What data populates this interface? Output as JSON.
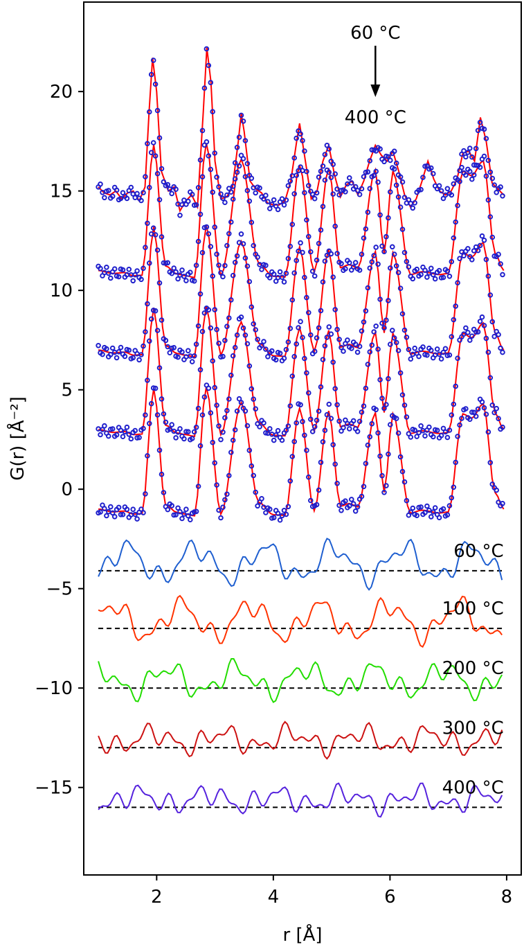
{
  "chart_data": {
    "type": "line",
    "title": "",
    "xlabel": "r [Å]",
    "ylabel": "G(r) [Å⁻²]",
    "xlim": [
      0.75,
      8.25
    ],
    "ylim": [
      -19.4,
      24.5
    ],
    "xticks": [
      2,
      4,
      6,
      8
    ],
    "xtick_labels": [
      "2",
      "4",
      "6",
      "8"
    ],
    "yticks": [
      -15,
      -10,
      -5,
      0,
      5,
      10,
      15,
      20
    ],
    "ytick_labels": [
      "−15",
      "−10",
      "−5",
      "0",
      "5",
      "10",
      "15",
      "20"
    ],
    "grid": false,
    "annotation": {
      "top_label": "60 °C",
      "bottom_label": "400 °C",
      "arrow": "down"
    },
    "peak_profile": [
      [
        1.0,
        0.0
      ],
      [
        1.25,
        -0.5
      ],
      [
        1.45,
        -0.35
      ],
      [
        1.6,
        -0.9
      ],
      [
        1.75,
        -0.8
      ],
      [
        1.95,
        21.5
      ],
      [
        2.15,
        0.8
      ],
      [
        2.35,
        -0.6
      ],
      [
        2.5,
        -0.9
      ],
      [
        2.65,
        -1.2
      ],
      [
        2.85,
        21.8
      ],
      [
        3.1,
        -0.9
      ],
      [
        3.45,
        19.0
      ],
      [
        3.75,
        1.2
      ],
      [
        4.0,
        -1.0
      ],
      [
        4.2,
        -1.1
      ],
      [
        4.45,
        18.0
      ],
      [
        4.7,
        -0.3
      ],
      [
        4.95,
        17.5
      ],
      [
        5.15,
        0.5
      ],
      [
        5.3,
        1.0
      ],
      [
        5.45,
        0.4
      ],
      [
        5.75,
        17.2
      ],
      [
        5.9,
        3.0
      ],
      [
        6.05,
        17.0
      ],
      [
        6.35,
        -0.7
      ],
      [
        6.55,
        -0.2
      ],
      [
        6.85,
        -0.7
      ],
      [
        7.0,
        -0.5
      ],
      [
        7.25,
        17.0
      ],
      [
        7.4,
        16.2
      ],
      [
        7.6,
        18.8
      ],
      [
        7.8,
        3.0
      ],
      [
        7.95,
        0.0
      ]
    ],
    "fit_series": [
      {
        "name": "60 °C",
        "x": [
          1.0,
          1.1,
          1.2,
          1.3,
          1.4,
          1.5,
          1.6,
          1.7,
          1.8,
          1.87,
          1.93,
          2.0,
          2.08,
          2.2,
          2.3,
          2.4,
          2.5,
          2.6,
          2.7,
          2.8,
          2.86,
          2.93,
          3.0,
          3.1,
          3.2,
          3.3,
          3.4,
          3.45,
          3.5,
          3.6,
          3.7,
          3.8,
          3.9,
          4.0,
          4.1,
          4.2,
          4.3,
          4.4,
          4.45,
          4.55,
          4.65,
          4.75,
          4.85,
          4.95,
          5.05,
          5.15,
          5.25,
          5.35,
          5.45,
          5.55,
          5.65,
          5.75,
          5.85,
          5.95,
          6.05,
          6.15,
          6.25,
          6.35,
          6.45,
          6.55,
          6.65,
          6.75,
          6.85,
          6.95,
          7.05,
          7.15,
          7.25,
          7.35,
          7.45,
          7.55,
          7.65,
          7.75,
          7.85,
          7.95
        ],
        "y": [
          15.2,
          14.9,
          14.8,
          15.0,
          14.6,
          14.9,
          15.0,
          14.5,
          15.2,
          19.0,
          21.7,
          20.0,
          16.0,
          15.0,
          15.2,
          14.0,
          14.5,
          14.8,
          14.2,
          19.0,
          22.2,
          20.5,
          16.5,
          14.6,
          14.7,
          15.2,
          17.5,
          18.9,
          18.0,
          15.5,
          15.1,
          14.9,
          14.4,
          14.3,
          14.3,
          14.5,
          15.5,
          17.5,
          18.4,
          16.5,
          14.6,
          15.0,
          16.5,
          17.3,
          15.8,
          14.7,
          15.3,
          15.5,
          14.8,
          15.5,
          16.5,
          17.3,
          16.8,
          16.5,
          17.0,
          16.0,
          14.8,
          14.2,
          14.6,
          15.5,
          16.5,
          15.6,
          15.0,
          14.8,
          15.0,
          15.6,
          16.9,
          17.0,
          16.5,
          18.7,
          17.5,
          15.4,
          15.1,
          14.8
        ]
      },
      {
        "name": "100 °C",
        "offset_y": 11.0,
        "amplitude_scale": 0.98
      },
      {
        "name": "200 °C",
        "offset_y": 7.0,
        "amplitude_scale": 0.96
      },
      {
        "name": "300 °C",
        "offset_y": 3.0,
        "amplitude_scale": 0.95
      },
      {
        "name": "400 °C",
        "offset_y": -1.0,
        "amplitude_scale": 0.94
      }
    ],
    "scatter_series": [
      {
        "name": "60 °C data",
        "offset_y": 15.0,
        "x_step": 0.035
      },
      {
        "name": "100 °C data",
        "offset_y": 11.0,
        "x_step": 0.035
      },
      {
        "name": "200 °C data",
        "offset_y": 7.0,
        "x_step": 0.035
      },
      {
        "name": "300 °C data",
        "offset_y": 3.0,
        "x_step": 0.035
      },
      {
        "name": "400 °C data",
        "offset_y": -1.0,
        "x_step": 0.035
      }
    ],
    "difference_series": [
      {
        "name": "60 °C",
        "label": "60 °C",
        "baseline": -4.1,
        "color": "#1f5fd0"
      },
      {
        "name": "100 °C",
        "label": "100 °C",
        "baseline": -7.0,
        "color": "#ff3300"
      },
      {
        "name": "200 °C",
        "label": "200 °C",
        "baseline": -10.0,
        "color": "#22dd00"
      },
      {
        "name": "300 °C",
        "label": "300 °C",
        "baseline": -13.0,
        "color": "#cc1111"
      },
      {
        "name": "400 °C",
        "label": "400 °C",
        "baseline": -16.0,
        "color": "#5522dd"
      }
    ],
    "colors": {
      "fit": "#ff0000",
      "data_marker": "#1f1fcc",
      "baseline": "#000000"
    }
  }
}
